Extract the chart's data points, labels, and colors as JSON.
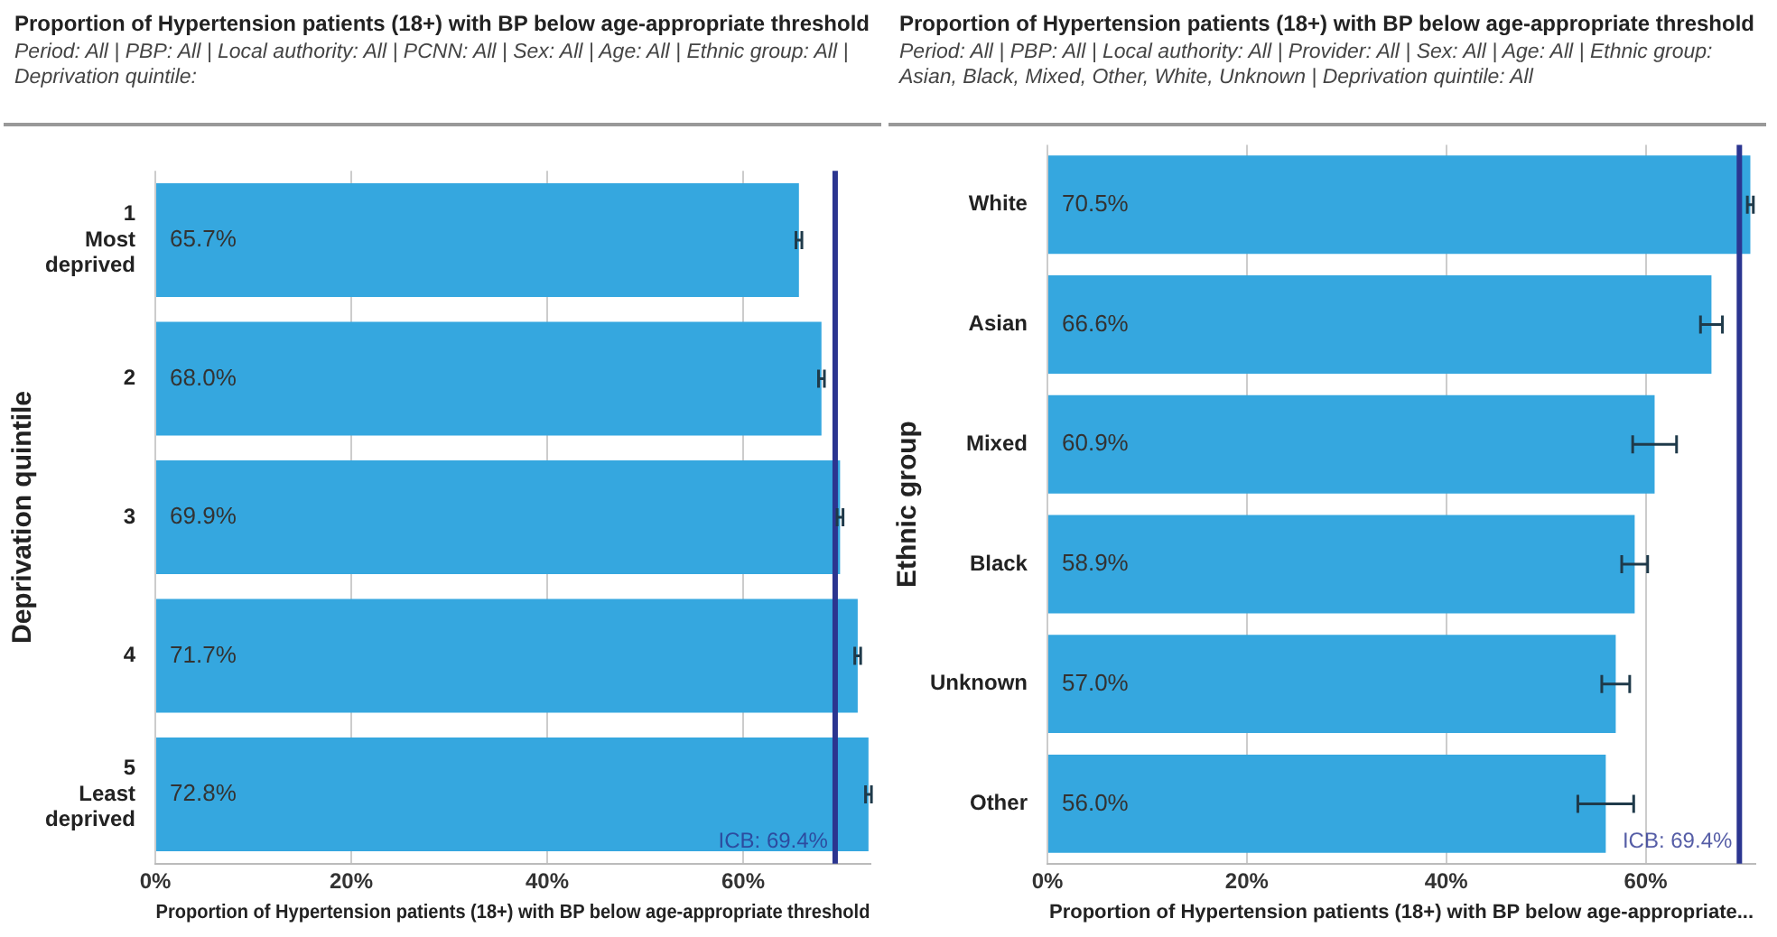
{
  "chart_data": [
    {
      "type": "bar",
      "orientation": "horizontal",
      "title": "Proportion of Hypertension patients (18+) with BP below age-appropriate threshold",
      "subtitle": "Period: All | PBP: All | Local authority: All | PCNN: All | Sex: All | Age: All | Ethnic group: All | Deprivation quintile:",
      "xlabel": "Proportion of Hypertension patients (18+) with BP below age-appropriate threshold",
      "ylabel": "Deprivation quintile",
      "categories": [
        "1\nMost\ndeprived",
        "2",
        "3",
        "4",
        "5\nLeast\ndeprived"
      ],
      "values": [
        65.7,
        68.0,
        69.9,
        71.7,
        72.8
      ],
      "errors": [
        0.3,
        0.3,
        0.3,
        0.3,
        0.3
      ],
      "value_labels": [
        "65.7%",
        "68.0%",
        "69.9%",
        "71.7%",
        "72.8%"
      ],
      "color": "#35a7df",
      "xlim": [
        0,
        73
      ],
      "xticks": [
        {
          "value": 0,
          "label": "0%"
        },
        {
          "value": 20,
          "label": "20%"
        },
        {
          "value": 40,
          "label": "40%"
        },
        {
          "value": 60,
          "label": "60%"
        }
      ],
      "grid": "x",
      "ref_lines": [
        {
          "axis": "x",
          "value": 69.4,
          "label": "ICB: 69.4%",
          "color": "#2b3590"
        }
      ]
    },
    {
      "type": "bar",
      "orientation": "horizontal",
      "title": "Proportion of Hypertension patients (18+) with BP below age-appropriate threshold",
      "subtitle": "Period: All | PBP: All | Local authority: All | Provider: All | Sex: All | Age: All | Ethnic group: Asian, Black, Mixed, Other, White, Unknown | Deprivation quintile: All",
      "xlabel": "Proportion of Hypertension patients (18+) with BP below age-appropriate...",
      "ylabel": "Ethnic group",
      "categories": [
        "White",
        "Asian",
        "Mixed",
        "Black",
        "Unknown",
        "Other"
      ],
      "values": [
        70.5,
        66.6,
        60.9,
        58.9,
        57.0,
        56.0
      ],
      "errors": [
        0.3,
        1.1,
        2.2,
        1.3,
        1.4,
        2.8
      ],
      "value_labels": [
        "70.5%",
        "66.6%",
        "60.9%",
        "58.9%",
        "57.0%",
        "56.0%"
      ],
      "color": "#35a7df",
      "xlim": [
        0,
        71
      ],
      "xticks": [
        {
          "value": 0,
          "label": "0%"
        },
        {
          "value": 20,
          "label": "20%"
        },
        {
          "value": 40,
          "label": "40%"
        },
        {
          "value": 60,
          "label": "60%"
        }
      ],
      "grid": "x",
      "ref_lines": [
        {
          "axis": "x",
          "value": 69.4,
          "label": "ICB: 69.4%",
          "color": "#2b3590"
        }
      ]
    }
  ]
}
